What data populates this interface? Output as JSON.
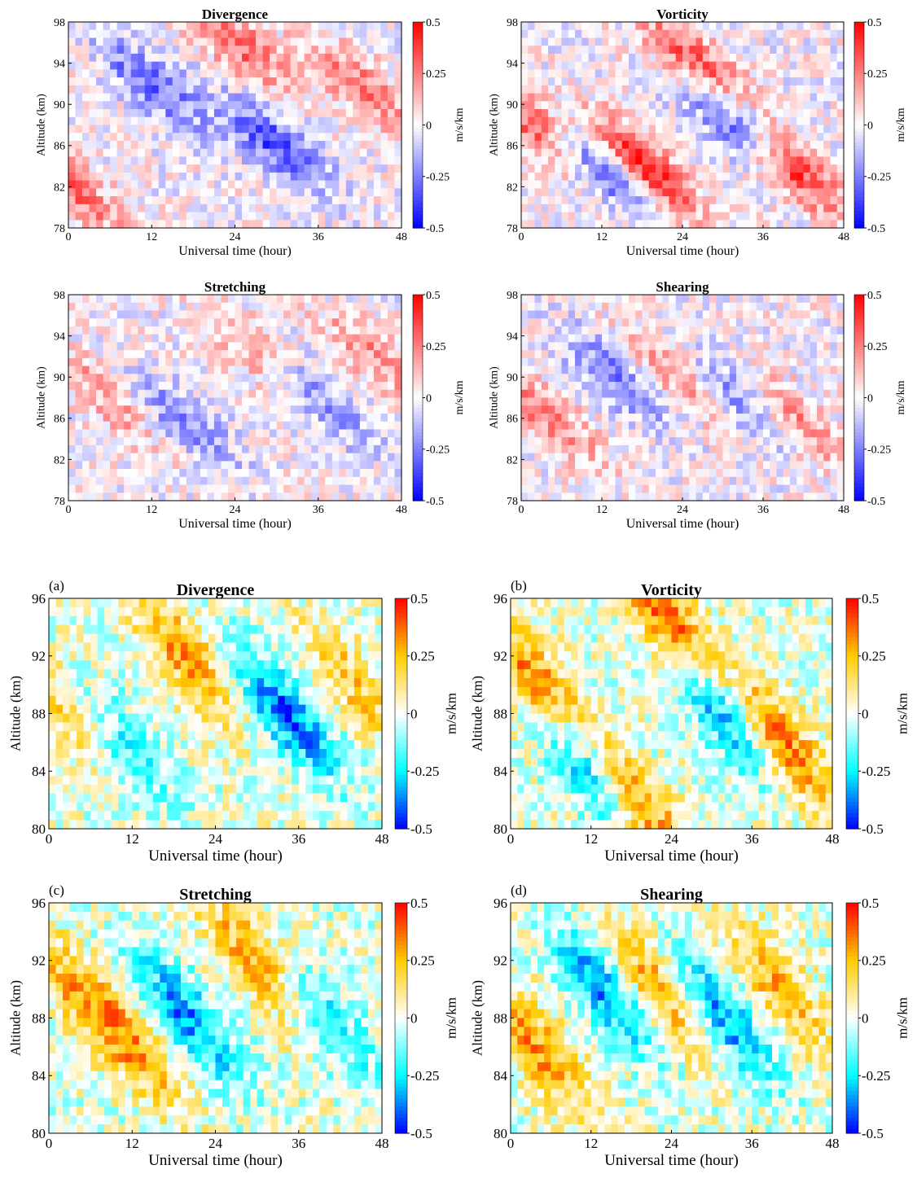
{
  "figure_top": {
    "panels": [
      {
        "title": "Divergence",
        "panel_label": ""
      },
      {
        "title": "Vorticity",
        "panel_label": ""
      },
      {
        "title": "Stretching",
        "panel_label": ""
      },
      {
        "title": "Shearing",
        "panel_label": ""
      }
    ],
    "xlabel": "Universal time (hour)",
    "ylabel": "Altitude (km)",
    "colorbar_label": "m/s/km",
    "colormap": "blue-white-red",
    "colormap_colors": [
      "#0000ff",
      "#ffffff",
      "#ff0000"
    ],
    "xticks": [
      "0",
      "12",
      "24",
      "36",
      "48"
    ],
    "yticks": [
      "78",
      "82",
      "86",
      "90",
      "94",
      "98"
    ],
    "cbar_ticks": [
      "0.5",
      "0.25",
      "0",
      "-0.25",
      "-0.5"
    ]
  },
  "figure_bottom": {
    "panels": [
      {
        "title": "Divergence",
        "panel_label": "(a)"
      },
      {
        "title": "Vorticity",
        "panel_label": "(b)"
      },
      {
        "title": "Stretching",
        "panel_label": "(c)"
      },
      {
        "title": "Shearing",
        "panel_label": "(d)"
      }
    ],
    "xlabel": "Universal time (hour)",
    "ylabel": "Altitude (km)",
    "colorbar_label": "m/s/km",
    "colormap": "jet",
    "colormap_colors": [
      "#0000ff",
      "#00ffff",
      "#ffffff",
      "#ffcc00",
      "#ff0000"
    ],
    "xticks": [
      "0",
      "12",
      "24",
      "36",
      "48"
    ],
    "yticks": [
      "80",
      "84",
      "88",
      "92",
      "96"
    ],
    "cbar_ticks": [
      "0.5",
      "0.25",
      "0",
      "-0.25",
      "-0.5"
    ]
  },
  "chart_data": [
    {
      "type": "heatmap",
      "title": "Divergence",
      "xlabel": "Universal time (hour)",
      "ylabel": "Altitude (km)",
      "xlim": [
        0,
        48
      ],
      "ylim": [
        78,
        98
      ],
      "clim": [
        -0.5,
        0.5
      ],
      "colorbar_label": "m/s/km",
      "pattern": "tilted bands descending with time, alternating sign",
      "bands": [
        [
          0,
          82,
          0.3
        ],
        [
          12,
          92,
          -0.3
        ],
        [
          24,
          96,
          0.3
        ],
        [
          30,
          86,
          -0.35
        ],
        [
          42,
          92,
          0.25
        ]
      ]
    },
    {
      "type": "heatmap",
      "title": "Vorticity",
      "xlabel": "Universal time (hour)",
      "ylabel": "Altitude (km)",
      "xlim": [
        0,
        48
      ],
      "ylim": [
        78,
        98
      ],
      "clim": [
        -0.5,
        0.5
      ],
      "colorbar_label": "m/s/km",
      "pattern": "strong tilted bands descending with time",
      "bands": [
        [
          2,
          88,
          0.35
        ],
        [
          12,
          84,
          -0.4
        ],
        [
          18,
          84,
          0.5
        ],
        [
          26,
          94,
          0.35
        ],
        [
          32,
          88,
          -0.4
        ],
        [
          40,
          84,
          0.45
        ]
      ]
    },
    {
      "type": "heatmap",
      "title": "Stretching",
      "xlabel": "Universal time (hour)",
      "ylabel": "Altitude (km)",
      "xlim": [
        0,
        48
      ],
      "ylim": [
        78,
        98
      ],
      "clim": [
        -0.5,
        0.5
      ],
      "colorbar_label": "m/s/km",
      "pattern": "weak mixed structure, tilted bands",
      "bands": [
        [
          6,
          88,
          0.2
        ],
        [
          16,
          86,
          -0.25
        ],
        [
          28,
          92,
          0.2
        ],
        [
          36,
          88,
          -0.25
        ],
        [
          44,
          92,
          0.2
        ]
      ]
    },
    {
      "type": "heatmap",
      "title": "Shearing",
      "xlabel": "Universal time (hour)",
      "ylabel": "Altitude (km)",
      "xlim": [
        0,
        48
      ],
      "ylim": [
        78,
        98
      ],
      "clim": [
        -0.5,
        0.5
      ],
      "colorbar_label": "m/s/km",
      "pattern": "tilted bands descending with time",
      "bands": [
        [
          4,
          86,
          0.25
        ],
        [
          14,
          90,
          -0.25
        ],
        [
          24,
          90,
          0.25
        ],
        [
          32,
          88,
          -0.3
        ],
        [
          40,
          86,
          0.25
        ]
      ]
    },
    {
      "type": "heatmap",
      "title": "Divergence",
      "panel_label": "(a)",
      "xlabel": "Universal time (hour)",
      "ylabel": "Altitude (km)",
      "xlim": [
        0,
        48
      ],
      "ylim": [
        80,
        96
      ],
      "clim": [
        -0.5,
        0.5
      ],
      "colorbar_label": "m/s/km",
      "pattern": "tilted bands descending with time, alternating sign",
      "bands": [
        [
          4,
          88,
          0.25
        ],
        [
          10,
          86,
          -0.3
        ],
        [
          20,
          92,
          0.3
        ],
        [
          34,
          88,
          -0.4
        ],
        [
          44,
          90,
          0.2
        ]
      ]
    },
    {
      "type": "heatmap",
      "title": "Vorticity",
      "panel_label": "(b)",
      "xlabel": "Universal time (hour)",
      "ylabel": "Altitude (km)",
      "xlim": [
        0,
        48
      ],
      "ylim": [
        80,
        96
      ],
      "clim": [
        -0.5,
        0.5
      ],
      "colorbar_label": "m/s/km",
      "pattern": "strong tilted bands descending with time",
      "bands": [
        [
          4,
          90,
          0.35
        ],
        [
          12,
          84,
          -0.45
        ],
        [
          18,
          82,
          0.45
        ],
        [
          24,
          94,
          0.4
        ],
        [
          32,
          88,
          -0.4
        ],
        [
          40,
          86,
          0.4
        ]
      ]
    },
    {
      "type": "heatmap",
      "title": "Stretching",
      "panel_label": "(c)",
      "xlabel": "Universal time (hour)",
      "ylabel": "Altitude (km)",
      "xlim": [
        0,
        48
      ],
      "ylim": [
        80,
        96
      ],
      "clim": [
        -0.5,
        0.5
      ],
      "colorbar_label": "m/s/km",
      "pattern": "mixed structure, tilted bands",
      "bands": [
        [
          4,
          90,
          0.2
        ],
        [
          12,
          86,
          0.25
        ],
        [
          20,
          88,
          -0.35
        ],
        [
          30,
          92,
          0.3
        ],
        [
          40,
          88,
          -0.25
        ]
      ]
    },
    {
      "type": "heatmap",
      "title": "Shearing",
      "panel_label": "(d)",
      "xlabel": "Universal time (hour)",
      "ylabel": "Altitude (km)",
      "xlim": [
        0,
        48
      ],
      "ylim": [
        80,
        96
      ],
      "clim": [
        -0.5,
        0.5
      ],
      "colorbar_label": "m/s/km",
      "pattern": "tilted bands descending with time",
      "bands": [
        [
          4,
          86,
          0.3
        ],
        [
          14,
          90,
          -0.35
        ],
        [
          22,
          90,
          0.3
        ],
        [
          32,
          88,
          -0.35
        ],
        [
          40,
          90,
          0.25
        ]
      ]
    }
  ]
}
